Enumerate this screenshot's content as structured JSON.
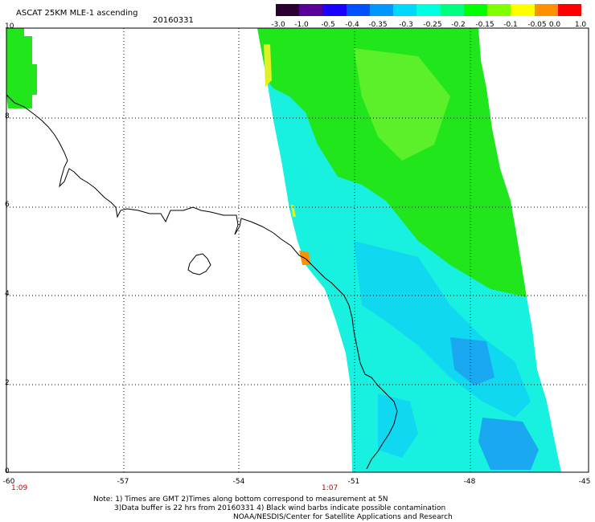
{
  "header": {
    "title": "ASCAT 25KM MLE-1 ascending",
    "date": "20160331"
  },
  "colorbar": {
    "labels": [
      "-3.0",
      "-1.0",
      "-0.5",
      "-0.4",
      "-0.35",
      "-0.3",
      "-0.25",
      "-0.2",
      "-0.15",
      "-0.1",
      "-0.05",
      "0.0",
      "1.0"
    ],
    "colors": [
      "#2a0030",
      "#5a009a",
      "#1a00ff",
      "#0050ff",
      "#0098ff",
      "#00d8ff",
      "#00ffe0",
      "#00ff80",
      "#00ff00",
      "#80ff00",
      "#ffff00",
      "#ff9000",
      "#ff0000"
    ]
  },
  "map": {
    "lat_labels": [
      "10",
      "8",
      "6",
      "4",
      "2",
      "0"
    ],
    "lon_labels": [
      "-60",
      "-57",
      "-54",
      "-51",
      "-48",
      "-45"
    ],
    "time_labels": [
      "1:09",
      "1:07"
    ],
    "swath_colors": {
      "green": "#22e61c",
      "green_light": "#5cf02a",
      "cyan": "#18f0e0",
      "cyan_mid": "#10d8f0",
      "blue": "#1aa8f0",
      "yellow": "#e0f020",
      "orange": "#ff9000"
    }
  },
  "notes": {
    "line1": "Note: 1) Times are GMT 2)Times along bottom correspond to measurement at 5N",
    "line2": "3)Data buffer is 22 hrs from 20160331 4) Black wind barbs indicate possible contamination",
    "line3": "NOAA/NESDIS/Center for Satellite Applications and Research"
  }
}
